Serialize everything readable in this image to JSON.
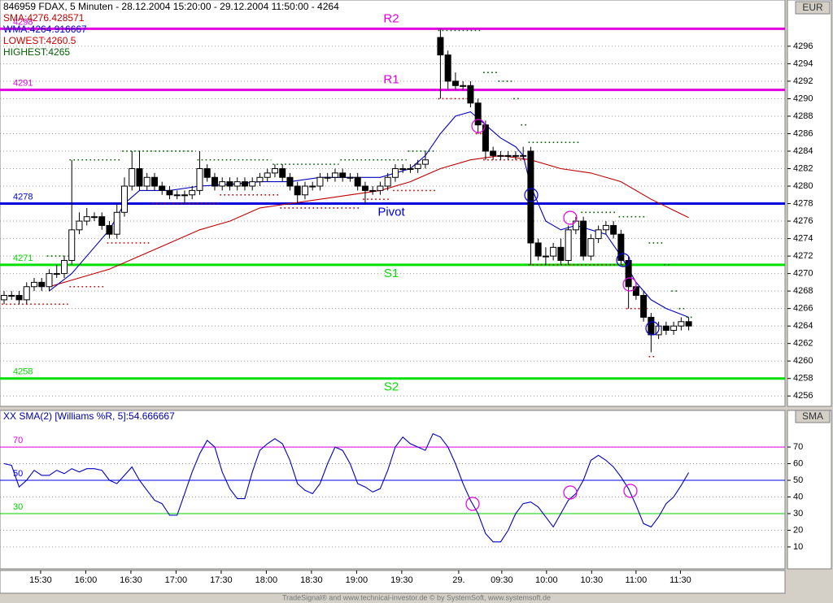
{
  "chart_data": [
    {
      "type": "candlestick",
      "title": "846959 FDAX, 5 Minuten - 28.12.2004 15:20:00 - 29.12.2004 11:50:00 - 4264",
      "axis_unit": "EUR",
      "open": [
        4267,
        4267.5,
        4267.5,
        4267,
        4268.5,
        4269,
        4268.5,
        4270,
        4270,
        4271.5,
        4275,
        4276,
        4276.5,
        4276.5,
        4275.5,
        4274.5,
        4277,
        4280,
        4282,
        4280,
        4281,
        4280,
        4279.5,
        4279,
        4279,
        4279,
        4279.5,
        4282,
        4281,
        4280,
        4280.5,
        4280,
        4280.5,
        4280,
        4280.5,
        4281,
        4281.5,
        4282,
        4281,
        4280,
        4279,
        4280,
        4280,
        4281,
        4281,
        4281.5,
        4281,
        4281,
        4280,
        4279.5,
        4279.5,
        4280,
        4281,
        4282,
        4282,
        4282,
        4282.5,
        null,
        4297,
        4295,
        4292,
        4291.5,
        4291.5,
        4289.5,
        4287,
        4284,
        4283.5,
        4283.5,
        4283.5,
        4283.5,
        4284,
        4273.5,
        4272,
        4272,
        4273,
        4271.5,
        4275,
        4276,
        4272,
        4274,
        4275,
        4275.5,
        4274.5,
        4271.5,
        4268.5,
        4267.5,
        4265,
        4263,
        4264,
        4263.5,
        4264,
        4264.5
      ],
      "high": [
        4268,
        4268,
        4268,
        4269,
        4269.5,
        4269.5,
        4270.5,
        4271,
        4272,
        4283,
        4277,
        4277.5,
        4277,
        4277,
        4276,
        4278,
        4281,
        4284,
        4284,
        4281.5,
        4281.5,
        4280.5,
        4280,
        4279.5,
        4279.5,
        4280,
        4284,
        4282.5,
        4281.5,
        4281,
        4281,
        4281,
        4281,
        4281,
        4281.5,
        4282,
        4282.5,
        4282.5,
        4281.5,
        4280.5,
        4280.5,
        4280.5,
        4281.5,
        4281.5,
        4282,
        4282,
        4281.5,
        4281.5,
        4280.5,
        4280,
        4280.5,
        4281.5,
        4282.5,
        4282.5,
        4282.5,
        4283,
        4284,
        null,
        4298,
        4295.5,
        4293,
        4292,
        4292,
        4290,
        4287.5,
        4284.5,
        4284,
        4284,
        4284,
        4284.5,
        4284.5,
        4274,
        4273,
        4273.5,
        4274,
        4275.5,
        4276.5,
        4276.5,
        4274.5,
        4275.5,
        4276,
        4276,
        4275,
        4272,
        4269,
        4268,
        4265.5,
        4264.5,
        4264.5,
        4264.5,
        4265,
        4265
      ],
      "low": [
        4266.5,
        4267,
        4266.5,
        4266.5,
        4268,
        4268,
        4268,
        4269.5,
        4269.5,
        4271,
        4274.5,
        4275.5,
        4276,
        4275,
        4274,
        4274,
        4276.5,
        4279.5,
        4279.5,
        4279.5,
        4279.5,
        4279,
        4278.5,
        4278.5,
        4278,
        4278.5,
        4279,
        4280.5,
        4279.5,
        4279.5,
        4279.5,
        4279.5,
        4279.5,
        4279.5,
        4280,
        4280.5,
        4281,
        4280.5,
        4279.5,
        4278,
        4278.5,
        4279.5,
        4279.5,
        4280.5,
        4280.5,
        4280.5,
        4280.5,
        4279.5,
        4278,
        4279,
        4279,
        4279.5,
        4280.5,
        4281.5,
        4281.5,
        4281.5,
        4282,
        null,
        4290,
        4291,
        4291,
        4291,
        4289,
        4286,
        4283,
        4283,
        4283,
        4283,
        4283,
        4283,
        4271,
        4271.5,
        4271,
        4271.5,
        4271,
        4271,
        4274.5,
        4271.5,
        4271.5,
        4273.5,
        4274.5,
        4274,
        4271,
        4266,
        4267,
        4264.5,
        4261,
        4262.5,
        4263,
        4263,
        4263.5,
        4263.5
      ],
      "close": [
        4267.5,
        4267.5,
        4267,
        4268.5,
        4269,
        4268.5,
        4270,
        4270,
        4271.5,
        4275,
        4276,
        4276.5,
        4276.5,
        4275.5,
        4274.5,
        4277,
        4280,
        4282,
        4280,
        4281,
        4280,
        4279.5,
        4279,
        4279,
        4279,
        4279.5,
        4282,
        4281,
        4280,
        4280.5,
        4280,
        4280.5,
        4280,
        4280.5,
        4281,
        4281.5,
        4282,
        4281,
        4280,
        4279,
        4280,
        4280,
        4281,
        4281,
        4281.5,
        4281,
        4281,
        4280,
        4279.5,
        4279.5,
        4280,
        4281,
        4282,
        4282,
        4282,
        4282.5,
        4283,
        null,
        4295,
        4292,
        4291.5,
        4291.5,
        4289.5,
        4287,
        4284,
        4283.5,
        4283.5,
        4283.5,
        4283.5,
        4283.5,
        4273.5,
        4272,
        4272,
        4273,
        4271.5,
        4275,
        4276,
        4272,
        4274,
        4275,
        4275.5,
        4274.5,
        4271.5,
        4268.5,
        4267.5,
        4265,
        4263,
        4264,
        4263.5,
        4264,
        4264.5,
        4264
      ],
      "up_color": "#ffffff",
      "down_color": "#000000",
      "series": [
        {
          "name": "SMA:4276.428571",
          "color": "#c00000",
          "style": "line",
          "x": [
            6,
            10,
            14,
            18,
            22,
            26,
            30,
            34,
            38,
            42,
            46,
            50,
            54,
            58,
            62,
            66,
            70,
            74,
            78,
            82,
            86,
            91
          ],
          "values": [
            4268.5,
            4269.5,
            4270.5,
            4272,
            4273.5,
            4275,
            4276,
            4277.5,
            4278,
            4278.5,
            4279,
            4279.5,
            4280.5,
            4282,
            4283,
            4283.5,
            4283,
            4282,
            4281.5,
            4280.5,
            4278.5,
            4276.4
          ]
        },
        {
          "name": "WMA:4264.916667",
          "color": "#0000c0",
          "style": "line",
          "x": [
            6,
            9,
            12,
            14,
            16,
            18,
            22,
            26,
            30,
            34,
            38,
            42,
            46,
            50,
            54,
            56,
            58,
            60,
            62,
            64,
            66,
            68,
            69,
            70,
            72,
            74,
            76,
            78,
            80,
            82,
            84,
            86,
            88,
            91
          ],
          "values": [
            4268,
            4270,
            4273,
            4275,
            4278,
            4279.5,
            4279.5,
            4280,
            4280.2,
            4280.5,
            4280.5,
            4281,
            4281,
            4281,
            4282,
            4283.5,
            4286,
            4288,
            4288.5,
            4287,
            4285.5,
            4284.5,
            4283.5,
            4280,
            4276,
            4275,
            4275.5,
            4275,
            4274.5,
            4272,
            4269,
            4267,
            4266,
            4265
          ]
        },
        {
          "name": "LOWEST:4260.5",
          "color": "#d00000",
          "style": "dots",
          "x": [
            0,
            9,
            14,
            20,
            29,
            37,
            48,
            52,
            58,
            63,
            64,
            70,
            77,
            83,
            86
          ],
          "values": [
            4266.5,
            4268.5,
            4273.5,
            4278,
            4279,
            4277.5,
            4278.5,
            4279.5,
            4290,
            4286,
            4283,
            4271,
            4271,
            4266,
            4260.5
          ]
        },
        {
          "name": "HIGHEST:4265",
          "color": "#006000",
          "style": "dots",
          "x": [
            6,
            9,
            16,
            26,
            36,
            45,
            54,
            58,
            64,
            66,
            68,
            69,
            70,
            77,
            82,
            86,
            88,
            89,
            90,
            91
          ],
          "values": [
            4272,
            4283,
            4284,
            4283,
            4282.5,
            4283,
            4284,
            4297.8,
            4293,
            4292,
            4290,
            4287,
            4285,
            4277,
            4276.5,
            4273.5,
            4271,
            4268,
            4266,
            4265
          ]
        }
      ],
      "levels": [
        {
          "name": "R2",
          "value": 4298,
          "color": "#e000e0"
        },
        {
          "name": "R1",
          "value": 4291,
          "color": "#e000e0"
        },
        {
          "name": "Pivot",
          "value": 4278,
          "color": "#0000e0"
        },
        {
          "name": "S1",
          "value": 4271,
          "color": "#00e000"
        },
        {
          "name": "S2",
          "value": 4258,
          "color": "#00e000"
        }
      ],
      "xlim": [
        -0.54,
        103.8
      ],
      "xticks": [
        {
          "value": 4.86,
          "label": "15:30"
        },
        {
          "value": 10.86,
          "label": "16:00"
        },
        {
          "value": 16.86,
          "label": "16:30"
        },
        {
          "value": 22.86,
          "label": "17:00"
        },
        {
          "value": 28.86,
          "label": "17:30"
        },
        {
          "value": 34.86,
          "label": "18:00"
        },
        {
          "value": 40.86,
          "label": "18:30"
        },
        {
          "value": 46.86,
          "label": "19:00"
        },
        {
          "value": 52.86,
          "label": "19:30"
        },
        {
          "value": 60.43,
          "label": "29."
        },
        {
          "value": 66.16,
          "label": "09:30"
        },
        {
          "value": 72.1,
          "label": "10:00"
        },
        {
          "value": 78.1,
          "label": "10:30"
        },
        {
          "value": 84,
          "label": "11:00"
        },
        {
          "value": 89.9,
          "label": "11:30"
        }
      ],
      "ylim": [
        4255,
        4301.1
      ],
      "yticks": [
        4256,
        4258,
        4260,
        4262,
        4264,
        4266,
        4268,
        4270,
        4272,
        4274,
        4276,
        4278,
        4280,
        4282,
        4284,
        4286,
        4288,
        4290,
        4292,
        4294,
        4296
      ],
      "grid": true
    },
    {
      "type": "line",
      "title": "XX SMA(2) [Williams %R, 5]:54.666667",
      "axis_unit": "SMA",
      "color": "#0000c0",
      "values": [
        60,
        59,
        46,
        50,
        56,
        53,
        53,
        56,
        54,
        57,
        55,
        57,
        57,
        56,
        50,
        48,
        53,
        58,
        50,
        44,
        38,
        36,
        29,
        29,
        42,
        55,
        66,
        74,
        70,
        55,
        45,
        39,
        39,
        55,
        68,
        72,
        75,
        72,
        62,
        48,
        44,
        42,
        48,
        60,
        70,
        68,
        60,
        48,
        46,
        43,
        45,
        56,
        70,
        76,
        72,
        70,
        68,
        78,
        76,
        70,
        60,
        48,
        38,
        30,
        18,
        13,
        13,
        20,
        30,
        36,
        37,
        34,
        28,
        22,
        30,
        38,
        42,
        50,
        62,
        65,
        62,
        58,
        52,
        45,
        35,
        24,
        22,
        28,
        36,
        40,
        47,
        54.666667
      ],
      "levels": [
        {
          "value": 70,
          "color": "#e000e0"
        },
        {
          "value": 50,
          "color": "#0000e0"
        },
        {
          "value": 30,
          "color": "#00d000"
        }
      ],
      "ylim": [
        -3.2,
        92
      ],
      "yticks": [
        10,
        20,
        30,
        40,
        50,
        60,
        70
      ],
      "grid": true
    }
  ],
  "footer": "TradeSignal® and www.technical-investor.de © by SystemSoft, www.systemsoft.de"
}
